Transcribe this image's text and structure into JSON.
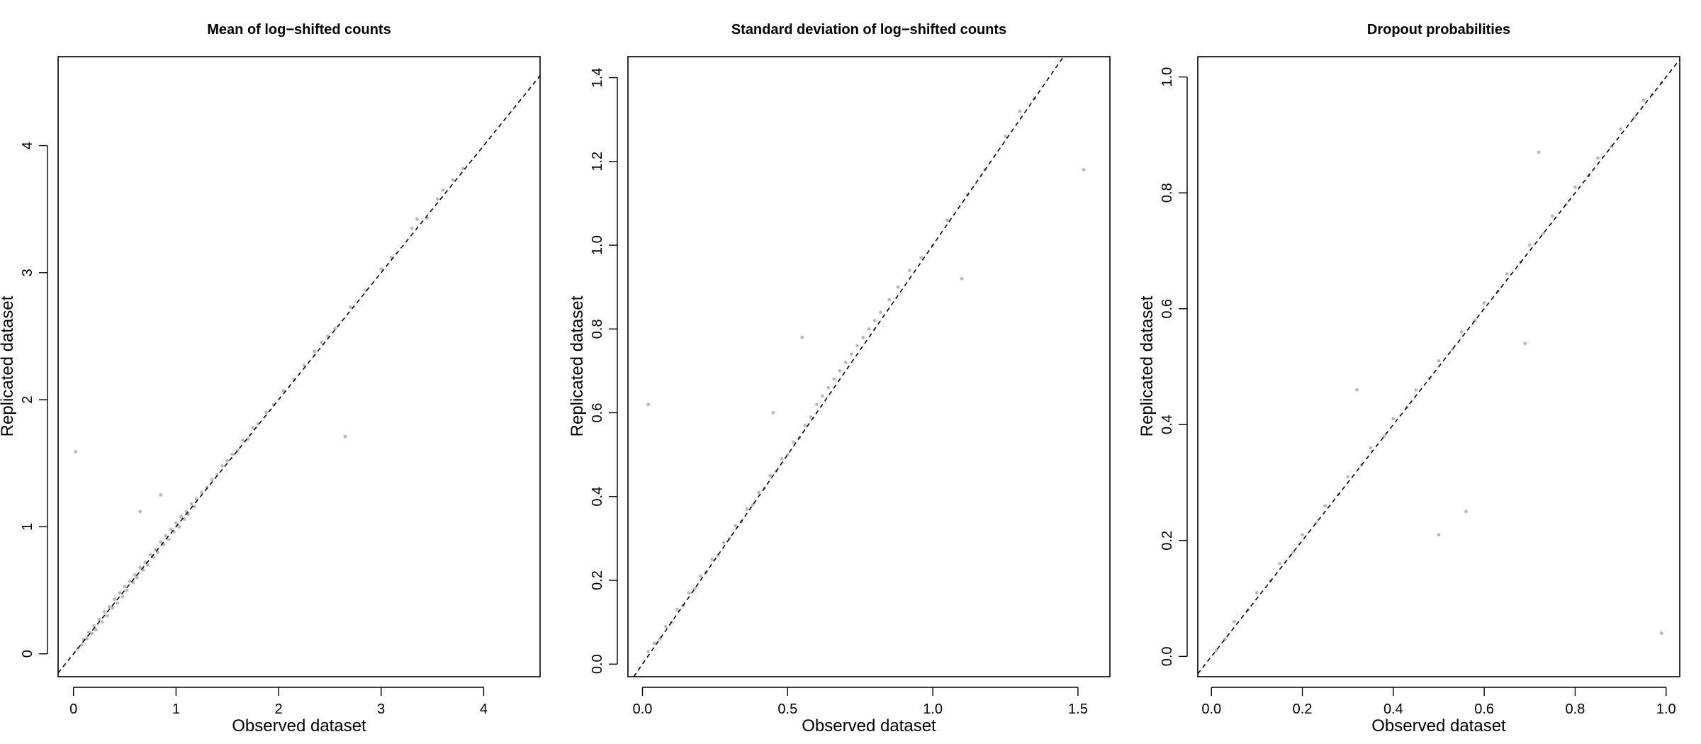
{
  "chart_data": [
    {
      "type": "scatter",
      "title": "Mean of log−shifted counts",
      "xlabel": "Observed dataset",
      "ylabel": "Replicated dataset",
      "xlim": [
        -0.15,
        4.55
      ],
      "ylim": [
        -0.18,
        4.7
      ],
      "xticks": [
        0,
        1,
        2,
        3,
        4
      ],
      "xtick_labels": [
        "0",
        "1",
        "2",
        "3",
        "4"
      ],
      "yticks": [
        0,
        1,
        2,
        3,
        4
      ],
      "ytick_labels": [
        "0",
        "1",
        "2",
        "3",
        "4"
      ],
      "reference_line": "y = x (dashed)",
      "point_color": "#b9b9b9",
      "grid": false,
      "legend": "none",
      "points": [
        [
          0.02,
          1.59
        ],
        [
          2.65,
          1.71
        ],
        [
          0.04,
          0.04
        ],
        [
          0.08,
          0.07
        ],
        [
          0.1,
          0.11
        ],
        [
          0.13,
          0.12
        ],
        [
          0.15,
          0.17
        ],
        [
          0.18,
          0.16
        ],
        [
          0.2,
          0.22
        ],
        [
          0.22,
          0.19
        ],
        [
          0.25,
          0.27
        ],
        [
          0.28,
          0.25
        ],
        [
          0.3,
          0.33
        ],
        [
          0.33,
          0.3
        ],
        [
          0.35,
          0.37
        ],
        [
          0.38,
          0.36
        ],
        [
          0.4,
          0.43
        ],
        [
          0.43,
          0.4
        ],
        [
          0.45,
          0.48
        ],
        [
          0.48,
          0.45
        ],
        [
          0.5,
          0.53
        ],
        [
          0.52,
          0.5
        ],
        [
          0.55,
          0.57
        ],
        [
          0.58,
          0.56
        ],
        [
          0.6,
          0.62
        ],
        [
          0.62,
          0.6
        ],
        [
          0.65,
          0.68
        ],
        [
          0.68,
          0.66
        ],
        [
          0.7,
          0.72
        ],
        [
          0.72,
          0.7
        ],
        [
          0.75,
          0.78
        ],
        [
          0.78,
          0.76
        ],
        [
          0.8,
          0.82
        ],
        [
          0.82,
          0.8
        ],
        [
          0.85,
          0.88
        ],
        [
          0.88,
          0.86
        ],
        [
          0.9,
          0.93
        ],
        [
          0.93,
          0.9
        ],
        [
          0.95,
          0.98
        ],
        [
          0.98,
          0.96
        ],
        [
          1.0,
          1.03
        ],
        [
          1.03,
          1.0
        ],
        [
          1.05,
          1.08
        ],
        [
          1.08,
          1.06
        ],
        [
          1.1,
          1.12
        ],
        [
          1.12,
          1.1
        ],
        [
          1.15,
          1.18
        ],
        [
          1.18,
          1.16
        ],
        [
          1.2,
          1.22
        ],
        [
          1.25,
          1.27
        ],
        [
          1.3,
          1.31
        ],
        [
          1.35,
          1.37
        ],
        [
          1.4,
          1.41
        ],
        [
          1.45,
          1.48
        ],
        [
          1.5,
          1.52
        ],
        [
          1.55,
          1.57
        ],
        [
          1.6,
          1.6
        ],
        [
          1.65,
          1.68
        ],
        [
          1.7,
          1.69
        ],
        [
          1.75,
          1.78
        ],
        [
          1.8,
          1.81
        ],
        [
          1.88,
          1.9
        ],
        [
          1.95,
          1.96
        ],
        [
          2.05,
          2.07
        ],
        [
          2.15,
          2.16
        ],
        [
          2.25,
          2.27
        ],
        [
          2.35,
          2.38
        ],
        [
          2.42,
          2.45
        ],
        [
          2.48,
          2.5
        ],
        [
          2.55,
          2.56
        ],
        [
          2.7,
          2.73
        ],
        [
          2.85,
          2.86
        ],
        [
          3.0,
          3.03
        ],
        [
          3.1,
          3.12
        ],
        [
          3.3,
          3.35
        ],
        [
          3.35,
          3.42
        ],
        [
          3.45,
          3.43
        ],
        [
          3.55,
          3.58
        ],
        [
          3.6,
          3.65
        ],
        [
          3.7,
          3.73
        ],
        [
          3.8,
          3.82
        ],
        [
          0.65,
          1.12
        ],
        [
          0.85,
          1.25
        ]
      ]
    },
    {
      "type": "scatter",
      "title": "Standard deviation of log−shifted counts",
      "xlabel": "Observed dataset",
      "ylabel": "Replicated dataset",
      "xlim": [
        -0.05,
        1.61
      ],
      "ylim": [
        -0.03,
        1.45
      ],
      "xticks": [
        0.0,
        0.5,
        1.0,
        1.5
      ],
      "xtick_labels": [
        "0.0",
        "0.5",
        "1.0",
        "1.5"
      ],
      "yticks": [
        0.0,
        0.2,
        0.4,
        0.6,
        0.8,
        1.0,
        1.2,
        1.4
      ],
      "ytick_labels": [
        "0.0",
        "0.2",
        "0.4",
        "0.6",
        "0.8",
        "1.0",
        "1.2",
        "1.4"
      ],
      "reference_line": "y = x (dashed)",
      "point_color": "#b9b9b9",
      "grid": false,
      "legend": "none",
      "points": [
        [
          0.02,
          0.62
        ],
        [
          1.52,
          1.18
        ],
        [
          1.1,
          0.92
        ],
        [
          0.02,
          0.03
        ],
        [
          0.04,
          0.05
        ],
        [
          0.06,
          0.06
        ],
        [
          0.08,
          0.09
        ],
        [
          0.1,
          0.1
        ],
        [
          0.12,
          0.13
        ],
        [
          0.14,
          0.14
        ],
        [
          0.16,
          0.17
        ],
        [
          0.18,
          0.18
        ],
        [
          0.2,
          0.21
        ],
        [
          0.22,
          0.22
        ],
        [
          0.24,
          0.25
        ],
        [
          0.26,
          0.26
        ],
        [
          0.28,
          0.29
        ],
        [
          0.3,
          0.3
        ],
        [
          0.32,
          0.33
        ],
        [
          0.34,
          0.34
        ],
        [
          0.36,
          0.37
        ],
        [
          0.38,
          0.38
        ],
        [
          0.4,
          0.41
        ],
        [
          0.42,
          0.42
        ],
        [
          0.44,
          0.45
        ],
        [
          0.46,
          0.46
        ],
        [
          0.48,
          0.49
        ],
        [
          0.5,
          0.5
        ],
        [
          0.52,
          0.53
        ],
        [
          0.54,
          0.54
        ],
        [
          0.56,
          0.57
        ],
        [
          0.58,
          0.59
        ],
        [
          0.6,
          0.62
        ],
        [
          0.62,
          0.64
        ],
        [
          0.64,
          0.66
        ],
        [
          0.66,
          0.68
        ],
        [
          0.68,
          0.7
        ],
        [
          0.7,
          0.72
        ],
        [
          0.72,
          0.74
        ],
        [
          0.74,
          0.76
        ],
        [
          0.76,
          0.78
        ],
        [
          0.78,
          0.8
        ],
        [
          0.8,
          0.82
        ],
        [
          0.82,
          0.84
        ],
        [
          0.85,
          0.87
        ],
        [
          0.88,
          0.9
        ],
        [
          0.92,
          0.94
        ],
        [
          0.96,
          0.97
        ],
        [
          1.0,
          1.0
        ],
        [
          1.05,
          1.06
        ],
        [
          1.12,
          1.12
        ],
        [
          1.18,
          1.18
        ],
        [
          1.25,
          1.26
        ],
        [
          1.3,
          1.32
        ],
        [
          1.35,
          1.35
        ],
        [
          0.55,
          0.78
        ],
        [
          0.45,
          0.6
        ]
      ]
    },
    {
      "type": "scatter",
      "title": "Dropout probabilities",
      "xlabel": "Observed dataset",
      "ylabel": "Replicated dataset",
      "xlim": [
        -0.03,
        1.03
      ],
      "ylim": [
        -0.035,
        1.035
      ],
      "xticks": [
        0.0,
        0.2,
        0.4,
        0.6,
        0.8,
        1.0
      ],
      "xtick_labels": [
        "0.0",
        "0.2",
        "0.4",
        "0.6",
        "0.8",
        "1.0"
      ],
      "yticks": [
        0.0,
        0.2,
        0.4,
        0.6,
        0.8,
        1.0
      ],
      "ytick_labels": [
        "0.0",
        "0.2",
        "0.4",
        "0.6",
        "0.8",
        "1.0"
      ],
      "reference_line": "y = x (dashed)",
      "point_color": "#b9b9b9",
      "grid": false,
      "legend": "none",
      "points": [
        [
          0.99,
          0.04
        ],
        [
          0.32,
          0.46
        ],
        [
          0.5,
          0.21
        ],
        [
          0.56,
          0.25
        ],
        [
          0.69,
          0.54
        ],
        [
          0.72,
          0.87
        ],
        [
          0.01,
          0.01
        ],
        [
          0.03,
          0.03
        ],
        [
          0.05,
          0.06
        ],
        [
          0.08,
          0.08
        ],
        [
          0.1,
          0.11
        ],
        [
          0.13,
          0.13
        ],
        [
          0.15,
          0.16
        ],
        [
          0.18,
          0.18
        ],
        [
          0.2,
          0.21
        ],
        [
          0.23,
          0.23
        ],
        [
          0.25,
          0.26
        ],
        [
          0.28,
          0.28
        ],
        [
          0.3,
          0.31
        ],
        [
          0.33,
          0.33
        ],
        [
          0.35,
          0.36
        ],
        [
          0.38,
          0.38
        ],
        [
          0.4,
          0.41
        ],
        [
          0.43,
          0.43
        ],
        [
          0.45,
          0.46
        ],
        [
          0.48,
          0.48
        ],
        [
          0.5,
          0.51
        ],
        [
          0.53,
          0.53
        ],
        [
          0.55,
          0.56
        ],
        [
          0.58,
          0.58
        ],
        [
          0.6,
          0.61
        ],
        [
          0.63,
          0.63
        ],
        [
          0.65,
          0.66
        ],
        [
          0.68,
          0.68
        ],
        [
          0.7,
          0.71
        ],
        [
          0.73,
          0.73
        ],
        [
          0.75,
          0.76
        ],
        [
          0.78,
          0.78
        ],
        [
          0.8,
          0.81
        ],
        [
          0.83,
          0.83
        ],
        [
          0.85,
          0.86
        ],
        [
          0.88,
          0.88
        ],
        [
          0.9,
          0.91
        ],
        [
          0.93,
          0.93
        ],
        [
          0.95,
          0.96
        ],
        [
          0.97,
          0.97
        ],
        [
          0.99,
          0.99
        ]
      ]
    }
  ]
}
